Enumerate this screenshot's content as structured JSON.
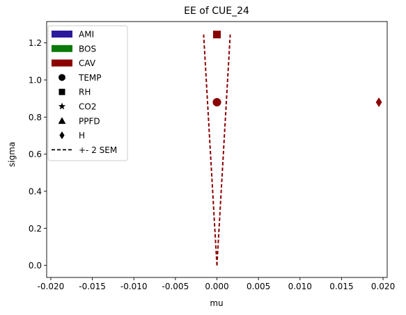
{
  "chart_data": {
    "type": "scatter",
    "title": "EE of CUE_24",
    "xlabel": "mu",
    "ylabel": "sigma",
    "xlim": [
      -0.0205,
      0.0205
    ],
    "ylim": [
      -0.065,
      1.315
    ],
    "x_ticks": [
      -0.02,
      -0.015,
      -0.01,
      -0.005,
      0.0,
      0.005,
      0.01,
      0.015,
      0.02
    ],
    "x_tick_labels": [
      "-0.020",
      "-0.015",
      "-0.010",
      "-0.005",
      "0.000",
      "0.005",
      "0.010",
      "0.015",
      "0.020"
    ],
    "y_ticks": [
      0.0,
      0.2,
      0.4,
      0.6,
      0.8,
      1.0,
      1.2
    ],
    "y_tick_labels": [
      "0.0",
      "0.2",
      "0.4",
      "0.6",
      "0.8",
      "1.0",
      "1.2"
    ],
    "grid": false,
    "legend_placement": "upper-left",
    "groups": [
      {
        "name": "AMI",
        "color": "#2a1a9e"
      },
      {
        "name": "BOS",
        "color": "#0a7a0a"
      },
      {
        "name": "CAV",
        "color": "#8b0000"
      }
    ],
    "marker_legend": [
      {
        "name": "TEMP",
        "marker": "circle"
      },
      {
        "name": "RH",
        "marker": "square"
      },
      {
        "name": "CO2",
        "marker": "star"
      },
      {
        "name": "PPFD",
        "marker": "triangle"
      },
      {
        "name": "H",
        "marker": "diamond"
      }
    ],
    "sem_legend": {
      "name": "+- 2 SEM",
      "style": "dashed"
    },
    "points": [
      {
        "group": "CAV",
        "variable": "TEMP",
        "marker": "circle",
        "x": 0.0,
        "y": 0.88
      },
      {
        "group": "CAV",
        "variable": "RH",
        "marker": "square",
        "x": 0.0,
        "y": 1.245
      },
      {
        "group": "CAV",
        "variable": "H",
        "marker": "diamond",
        "x": 0.0195,
        "y": 0.88
      }
    ],
    "sem_lines": [
      {
        "group": "CAV",
        "color": "#8b0000",
        "points": [
          [
            0.0,
            0.0
          ],
          [
            -0.0016,
            1.245
          ]
        ]
      },
      {
        "group": "CAV",
        "color": "#8b0000",
        "points": [
          [
            0.0,
            0.0
          ],
          [
            0.0016,
            1.245
          ]
        ]
      }
    ]
  }
}
